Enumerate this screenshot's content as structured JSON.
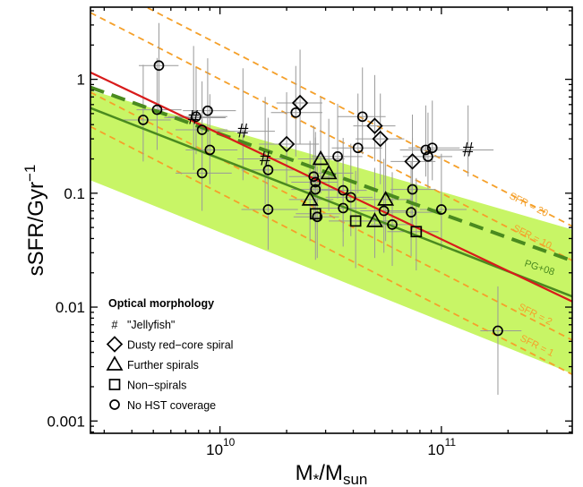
{
  "chart_data": {
    "type": "scatter",
    "title": "",
    "xlabel": "M*/Msun",
    "ylabel": "sSFR/Gyr-1",
    "xscale": "log",
    "yscale": "log",
    "xlim": [
      2600000000.0,
      390000000000.0
    ],
    "ylim": [
      0.00078,
      4.3
    ],
    "x_ticks": [
      {
        "value": 10000000000.0,
        "label": "10",
        "exp": "10"
      },
      {
        "value": 100000000000.0,
        "label": "10",
        "exp": "11"
      }
    ],
    "y_ticks": [
      {
        "value": 1,
        "label": "1"
      },
      {
        "value": 0.1,
        "label": "0.1"
      },
      {
        "value": 0.01,
        "label": "0.01"
      },
      {
        "value": 0.001,
        "label": "0.001"
      }
    ],
    "colors": {
      "band": "#c8f566",
      "fit_red": "#d81b1b",
      "pg08_line": "#4a8a1f",
      "dashed_green": "#4a8a1f",
      "sfr_lines": "#f5a02a",
      "errorbars": "#999999"
    },
    "band": {
      "x": [
        2600000000.0,
        390000000000.0
      ],
      "lower": [
        0.13,
        0.0026
      ],
      "upper": [
        0.8,
        0.048
      ]
    },
    "fit_red": {
      "x": [
        2600000000.0,
        390000000000.0
      ],
      "y": [
        1.15,
        0.0112
      ]
    },
    "pg08_line": {
      "label": "PG+08",
      "x": [
        2600000000.0,
        390000000000.0
      ],
      "y": [
        0.56,
        0.0124
      ]
    },
    "dashed_green": {
      "x": [
        2600000000.0,
        390000000000.0
      ],
      "y": [
        0.85,
        0.0255
      ]
    },
    "sfr_lines": [
      {
        "label": "SFR = 20",
        "sfr": 20
      },
      {
        "label": "SFR = 10",
        "sfr": 10
      },
      {
        "label": "SFR = 2",
        "sfr": 2
      },
      {
        "label": "SFR = 1",
        "sfr": 1
      }
    ],
    "series": [
      {
        "name": "\"Jellyfish\"",
        "marker": "hash",
        "points": [
          {
            "x": 7600000000.0,
            "y": 0.46,
            "xerr": [
              2000000000.0,
              3000000000.0
            ],
            "yerr": [
              0.3,
              1.5
            ]
          },
          {
            "x": 12700000000.0,
            "y": 0.35,
            "xerr": [
              3000000000.0,
              5000000000.0
            ],
            "yerr": [
              0.22,
              0.9
            ]
          },
          {
            "x": 16000000000.0,
            "y": 0.2,
            "xerr": [
              4000000000.0,
              5000000000.0
            ],
            "yerr": [
              0.12,
              0.5
            ]
          },
          {
            "x": 132000000000.0,
            "y": 0.24,
            "xerr": [
              30000000000.0,
              40000000000.0
            ],
            "yerr": [
              0.1,
              0.35
            ]
          }
        ]
      },
      {
        "name": "Dusty red-core spiral",
        "marker": "diamond",
        "points": [
          {
            "x": 23000000000.0,
            "y": 0.62,
            "xerr": [
              5000000000.0,
              6000000000.0
            ],
            "yerr": [
              0.35,
              1.2
            ]
          },
          {
            "x": 20000000000.0,
            "y": 0.27,
            "xerr": [
              5000000000.0,
              8000000000.0
            ],
            "yerr": [
              0.15,
              0.5
            ]
          },
          {
            "x": 50000000000.0,
            "y": 0.39,
            "xerr": [
              10000000000.0,
              12000000000.0
            ],
            "yerr": [
              0.2,
              0.7
            ]
          },
          {
            "x": 53000000000.0,
            "y": 0.3,
            "xerr": [
              12000000000.0,
              15000000000.0
            ],
            "yerr": [
              0.18,
              0.45
            ]
          },
          {
            "x": 74000000000.0,
            "y": 0.19,
            "xerr": [
              15000000000.0,
              20000000000.0
            ],
            "yerr": [
              0.1,
              0.3
            ]
          }
        ]
      },
      {
        "name": "Further spirals",
        "marker": "triangle",
        "points": [
          {
            "x": 28500000000.0,
            "y": 0.2,
            "xerr": [
              6000000000.0,
              8000000000.0
            ],
            "yerr": [
              0.1,
              0.5
            ]
          },
          {
            "x": 31000000000.0,
            "y": 0.15,
            "xerr": [
              6000000000.0,
              9000000000.0
            ],
            "yerr": [
              0.08,
              0.3
            ]
          },
          {
            "x": 25500000000.0,
            "y": 0.088,
            "xerr": [
              5000000000.0,
              7000000000.0
            ],
            "yerr": [
              0.05,
              0.2
            ]
          },
          {
            "x": 56000000000.0,
            "y": 0.088,
            "xerr": [
              12000000000.0,
              18000000000.0
            ],
            "yerr": [
              0.05,
              0.2
            ]
          },
          {
            "x": 50000000000.0,
            "y": 0.057,
            "xerr": [
              10000000000.0,
              14000000000.0
            ],
            "yerr": [
              0.03,
              0.11
            ]
          }
        ]
      },
      {
        "name": "Non-spirals",
        "marker": "square",
        "points": [
          {
            "x": 27000000000.0,
            "y": 0.066,
            "xerr": [
              5000000000.0,
              8000000000.0
            ],
            "yerr": [
              0.04,
              0.12
            ]
          },
          {
            "x": 41000000000.0,
            "y": 0.057,
            "xerr": [
              10000000000.0,
              10000000000.0
            ],
            "yerr": [
              0.035,
              0.1
            ]
          },
          {
            "x": 77000000000.0,
            "y": 0.046,
            "xerr": [
              20000000000.0,
              20000000000.0
            ],
            "yerr": [
              0.025,
              0.09
            ]
          }
        ]
      },
      {
        "name": "No HST coverage",
        "marker": "circle",
        "points": [
          {
            "x": 5300000000.0,
            "y": 1.32,
            "xerr": [
              1000000000.0,
              1200000000.0
            ],
            "yerr": [
              0.8,
              1.8
            ]
          },
          {
            "x": 4500000000.0,
            "y": 0.44,
            "xerr": [
              1000000000.0,
              1500000000.0
            ],
            "yerr": [
              0.25,
              0.9
            ]
          },
          {
            "x": 5200000000.0,
            "y": 0.54,
            "xerr": [
              1000000000.0,
              1500000000.0
            ],
            "yerr": [
              0.3,
              1.0
            ]
          },
          {
            "x": 7800000000.0,
            "y": 0.47,
            "xerr": [
              2000000000.0,
              3000000000.0
            ],
            "yerr": [
              0.25,
              0.8
            ]
          },
          {
            "x": 8300000000.0,
            "y": 0.36,
            "xerr": [
              2000000000.0,
              2500000000.0
            ],
            "yerr": [
              0.2,
              0.6
            ]
          },
          {
            "x": 8800000000.0,
            "y": 0.53,
            "xerr": [
              2000000000.0,
              3000000000.0
            ],
            "yerr": [
              0.3,
              1.0
            ]
          },
          {
            "x": 9000000000.0,
            "y": 0.24,
            "xerr": [
              2000000000.0,
              3000000000.0
            ],
            "yerr": [
              0.12,
              0.5
            ]
          },
          {
            "x": 8300000000.0,
            "y": 0.15,
            "xerr": [
              2000000000.0,
              3000000000.0
            ],
            "yerr": [
              0.08,
              0.3
            ]
          },
          {
            "x": 16500000000.0,
            "y": 0.16,
            "xerr": [
              4000000000.0,
              5000000000.0
            ],
            "yerr": [
              0.09,
              0.3
            ]
          },
          {
            "x": 16500000000.0,
            "y": 0.072,
            "xerr": [
              4000000000.0,
              6000000000.0
            ],
            "yerr": [
              0.04,
              0.15
            ]
          },
          {
            "x": 22000000000.0,
            "y": 0.51,
            "xerr": [
              5000000000.0,
              7000000000.0
            ],
            "yerr": [
              0.3,
              0.8
            ]
          },
          {
            "x": 26500000000.0,
            "y": 0.14,
            "xerr": [
              6000000000.0,
              7000000000.0
            ],
            "yerr": [
              0.08,
              0.25
            ]
          },
          {
            "x": 27000000000.0,
            "y": 0.125,
            "xerr": [
              6000000000.0,
              7000000000.0
            ],
            "yerr": [
              0.07,
              0.22
            ]
          },
          {
            "x": 27000000000.0,
            "y": 0.108,
            "xerr": [
              6000000000.0,
              7000000000.0
            ],
            "yerr": [
              0.06,
              0.2
            ]
          },
          {
            "x": 27500000000.0,
            "y": 0.062,
            "xerr": [
              6000000000.0,
              7000000000.0
            ],
            "yerr": [
              0.035,
              0.11
            ]
          },
          {
            "x": 34000000000.0,
            "y": 0.21,
            "xerr": [
              8000000000.0,
              10000000000.0
            ],
            "yerr": [
              0.12,
              0.4
            ]
          },
          {
            "x": 36000000000.0,
            "y": 0.106,
            "xerr": [
              8000000000.0,
              10000000000.0
            ],
            "yerr": [
              0.06,
              0.2
            ]
          },
          {
            "x": 36000000000.0,
            "y": 0.074,
            "xerr": [
              8000000000.0,
              10000000000.0
            ],
            "yerr": [
              0.04,
              0.14
            ]
          },
          {
            "x": 39000000000.0,
            "y": 0.092,
            "xerr": [
              9000000000.0,
              10000000000.0
            ],
            "yerr": [
              0.05,
              0.18
            ]
          },
          {
            "x": 42000000000.0,
            "y": 0.25,
            "xerr": [
              10000000000.0,
              12000000000.0
            ],
            "yerr": [
              0.15,
              0.5
            ]
          },
          {
            "x": 44000000000.0,
            "y": 0.47,
            "xerr": [
              10000000000.0,
              12000000000.0
            ],
            "yerr": [
              0.25,
              0.8
            ]
          },
          {
            "x": 55000000000.0,
            "y": 0.07,
            "xerr": [
              12000000000.0,
              15000000000.0
            ],
            "yerr": [
              0.04,
              0.13
            ]
          },
          {
            "x": 60000000000.0,
            "y": 0.053,
            "xerr": [
              12000000000.0,
              15000000000.0
            ],
            "yerr": [
              0.03,
              0.1
            ]
          },
          {
            "x": 73000000000.0,
            "y": 0.068,
            "xerr": [
              15000000000.0,
              20000000000.0
            ],
            "yerr": [
              0.04,
              0.12
            ]
          },
          {
            "x": 74000000000.0,
            "y": 0.108,
            "xerr": [
              15000000000.0,
              20000000000.0
            ],
            "yerr": [
              0.06,
              0.2
            ]
          },
          {
            "x": 85000000000.0,
            "y": 0.24,
            "xerr": [
              20000000000.0,
              25000000000.0
            ],
            "yerr": [
              0.1,
              0.35
            ]
          },
          {
            "x": 87000000000.0,
            "y": 0.21,
            "xerr": [
              20000000000.0,
              25000000000.0
            ],
            "yerr": [
              0.1,
              0.3
            ]
          },
          {
            "x": 91000000000.0,
            "y": 0.25,
            "xerr": [
              20000000000.0,
              30000000000.0
            ],
            "yerr": [
              0.12,
              0.4
            ]
          },
          {
            "x": 100000000000.0,
            "y": 0.072,
            "xerr": [
              20000000000.0,
              30000000000.0
            ],
            "yerr": [
              0.04,
              0.15
            ]
          },
          {
            "x": 180000000000.0,
            "y": 0.0062,
            "xerr": [
              30000000000.0,
              50000000000.0
            ],
            "yerr": [
              0.0045,
              0.009
            ]
          }
        ]
      }
    ],
    "legend": {
      "title": "Optical morphology",
      "placement": "bottom-left",
      "entries": [
        {
          "symbol": "#",
          "marker": "hash",
          "label": "\"Jellyfish\""
        },
        {
          "marker": "diamond",
          "label": "Dusty red−core spiral"
        },
        {
          "marker": "triangle",
          "label": "Further spirals"
        },
        {
          "marker": "square",
          "label": "Non−spirals"
        },
        {
          "marker": "circle",
          "label": "No HST coverage"
        }
      ]
    }
  }
}
